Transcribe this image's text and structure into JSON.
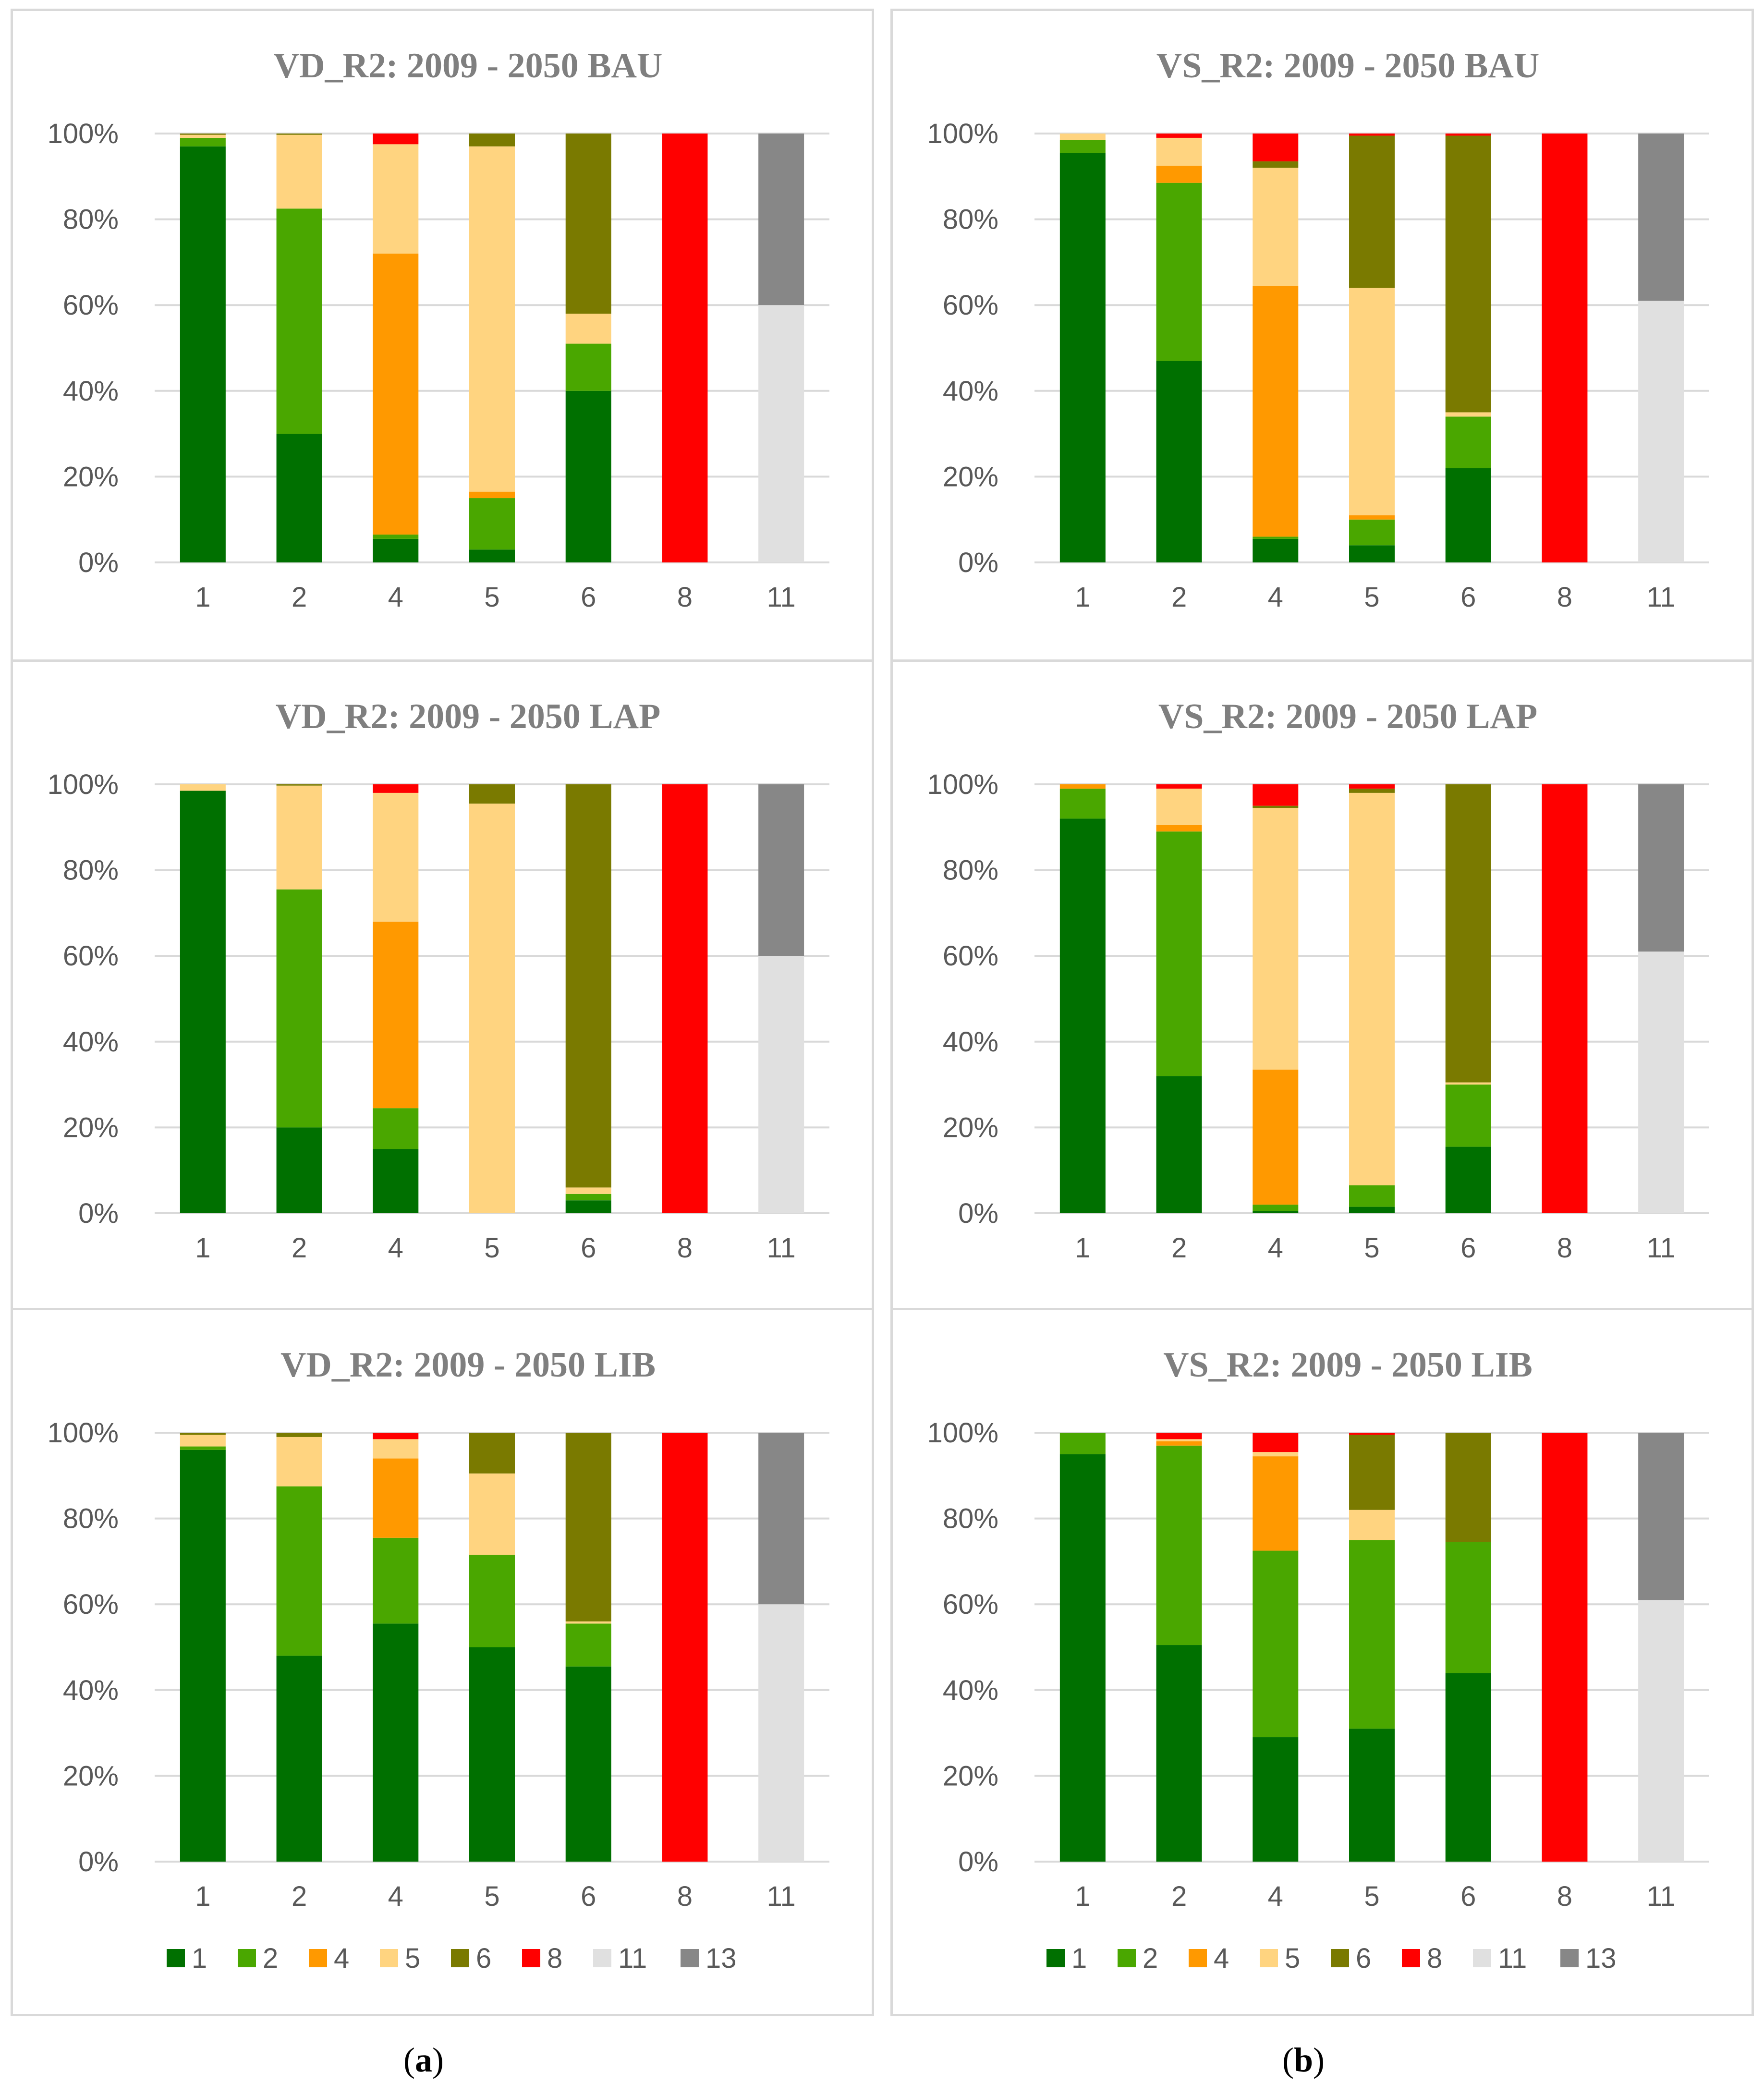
{
  "colors": {
    "1": "#007000",
    "2": "#4aa700",
    "4": "#ff9900",
    "5": "#ffd480",
    "6": "#7a7a00",
    "8": "#ff0000",
    "11": "#e0e0e0",
    "13": "#878787"
  },
  "legend_labels": [
    "1",
    "2",
    "4",
    "5",
    "6",
    "8",
    "11",
    "13"
  ],
  "sublabels": {
    "a": "a",
    "b": "b"
  },
  "chart_data": [
    {
      "type": "bar",
      "stacked": true,
      "title": "VD_R2: 2009 - 2050 BAU",
      "categories": [
        "1",
        "2",
        "4",
        "5",
        "6",
        "8",
        "11"
      ],
      "yticks": [
        "0%",
        "20%",
        "40%",
        "60%",
        "80%",
        "100%"
      ],
      "ylim": [
        0,
        100
      ],
      "series": [
        {
          "name": "1",
          "values": [
            97,
            30,
            5.5,
            3,
            40,
            0,
            0
          ]
        },
        {
          "name": "2",
          "values": [
            2,
            52.5,
            1,
            12,
            11,
            0,
            0
          ]
        },
        {
          "name": "4",
          "values": [
            0,
            0,
            65.5,
            1.5,
            0,
            0,
            0
          ]
        },
        {
          "name": "5",
          "values": [
            0.7,
            17.2,
            25.5,
            80.5,
            7,
            0,
            0
          ]
        },
        {
          "name": "6",
          "values": [
            0.3,
            0.3,
            0,
            3,
            42,
            0,
            0
          ]
        },
        {
          "name": "8",
          "values": [
            0,
            0,
            2.5,
            0,
            0,
            100,
            0
          ]
        },
        {
          "name": "11",
          "values": [
            0,
            0,
            0,
            0,
            0,
            0,
            60
          ]
        },
        {
          "name": "13",
          "values": [
            0,
            0,
            0,
            0,
            0,
            0,
            40
          ]
        }
      ]
    },
    {
      "type": "bar",
      "stacked": true,
      "title": "VD_R2: 2009 - 2050 LAP",
      "categories": [
        "1",
        "2",
        "4",
        "5",
        "6",
        "8",
        "11"
      ],
      "yticks": [
        "0%",
        "20%",
        "40%",
        "60%",
        "80%",
        "100%"
      ],
      "ylim": [
        0,
        100
      ],
      "series": [
        {
          "name": "1",
          "values": [
            98.5,
            20,
            15,
            0,
            3,
            0,
            0
          ]
        },
        {
          "name": "2",
          "values": [
            0,
            55.5,
            9.5,
            0,
            1.5,
            0,
            0
          ]
        },
        {
          "name": "4",
          "values": [
            0,
            0,
            43.5,
            0,
            0,
            0,
            0
          ]
        },
        {
          "name": "5",
          "values": [
            1.5,
            24.2,
            30,
            95.5,
            1.5,
            0,
            0
          ]
        },
        {
          "name": "6",
          "values": [
            0,
            0.3,
            0,
            4.5,
            94,
            0,
            0
          ]
        },
        {
          "name": "8",
          "values": [
            0,
            0,
            2,
            0,
            0,
            100,
            0
          ]
        },
        {
          "name": "11",
          "values": [
            0,
            0,
            0,
            0,
            0,
            0,
            60
          ]
        },
        {
          "name": "13",
          "values": [
            0,
            0,
            0,
            0,
            0,
            0,
            40
          ]
        }
      ]
    },
    {
      "type": "bar",
      "stacked": true,
      "title": "VD_R2: 2009 - 2050 LIB",
      "categories": [
        "1",
        "2",
        "4",
        "5",
        "6",
        "8",
        "11"
      ],
      "yticks": [
        "0%",
        "20%",
        "40%",
        "60%",
        "80%",
        "100%"
      ],
      "ylim": [
        0,
        100
      ],
      "series": [
        {
          "name": "1",
          "values": [
            96,
            48,
            55.5,
            50,
            45.5,
            0,
            0
          ]
        },
        {
          "name": "2",
          "values": [
            0.8,
            39.5,
            20,
            21.5,
            10,
            0,
            0
          ]
        },
        {
          "name": "4",
          "values": [
            0,
            0,
            18.5,
            0,
            0,
            0,
            0
          ]
        },
        {
          "name": "5",
          "values": [
            2.7,
            11.5,
            4.5,
            19,
            0.5,
            0,
            0
          ]
        },
        {
          "name": "6",
          "values": [
            0.5,
            1,
            0,
            9.5,
            44,
            0,
            0
          ]
        },
        {
          "name": "8",
          "values": [
            0,
            0,
            1.5,
            0,
            0,
            100,
            0
          ]
        },
        {
          "name": "11",
          "values": [
            0,
            0,
            0,
            0,
            0,
            0,
            60
          ]
        },
        {
          "name": "13",
          "values": [
            0,
            0,
            0,
            0,
            0,
            0,
            40
          ]
        }
      ]
    },
    {
      "type": "bar",
      "stacked": true,
      "title": "VS_R2: 2009 - 2050 BAU",
      "categories": [
        "1",
        "2",
        "4",
        "5",
        "6",
        "8",
        "11"
      ],
      "yticks": [
        "0%",
        "20%",
        "40%",
        "60%",
        "80%",
        "100%"
      ],
      "ylim": [
        0,
        100
      ],
      "series": [
        {
          "name": "1",
          "values": [
            95.5,
            47,
            5.5,
            4,
            22,
            0,
            0
          ]
        },
        {
          "name": "2",
          "values": [
            3,
            41.5,
            0.5,
            6,
            12,
            0,
            0
          ]
        },
        {
          "name": "4",
          "values": [
            0,
            4,
            58.5,
            1,
            0,
            0,
            0
          ]
        },
        {
          "name": "5",
          "values": [
            1.5,
            6.5,
            27.5,
            53,
            1,
            0,
            0
          ]
        },
        {
          "name": "6",
          "values": [
            0,
            0,
            1.5,
            35.5,
            64.5,
            0,
            0
          ]
        },
        {
          "name": "8",
          "values": [
            0,
            1,
            6.5,
            0.5,
            0.5,
            100,
            0
          ]
        },
        {
          "name": "11",
          "values": [
            0,
            0,
            0,
            0,
            0,
            0,
            61
          ]
        },
        {
          "name": "13",
          "values": [
            0,
            0,
            0,
            0,
            0,
            0,
            39
          ]
        }
      ]
    },
    {
      "type": "bar",
      "stacked": true,
      "title": "VS_R2: 2009 - 2050 LAP",
      "categories": [
        "1",
        "2",
        "4",
        "5",
        "6",
        "8",
        "11"
      ],
      "yticks": [
        "0%",
        "20%",
        "40%",
        "60%",
        "80%",
        "100%"
      ],
      "ylim": [
        0,
        100
      ],
      "series": [
        {
          "name": "1",
          "values": [
            92,
            32,
            0.5,
            1.5,
            15.5,
            0,
            0
          ]
        },
        {
          "name": "2",
          "values": [
            7,
            57,
            1.5,
            5,
            14.5,
            0,
            0
          ]
        },
        {
          "name": "4",
          "values": [
            1,
            1.5,
            31.5,
            0,
            0,
            0,
            0
          ]
        },
        {
          "name": "5",
          "values": [
            0,
            8.5,
            61,
            91.5,
            0.5,
            0,
            0
          ]
        },
        {
          "name": "6",
          "values": [
            0,
            0,
            0.5,
            1,
            69.5,
            0,
            0
          ]
        },
        {
          "name": "8",
          "values": [
            0,
            1,
            5,
            1,
            0,
            100,
            0
          ]
        },
        {
          "name": "11",
          "values": [
            0,
            0,
            0,
            0,
            0,
            0,
            61
          ]
        },
        {
          "name": "13",
          "values": [
            0,
            0,
            0,
            0,
            0,
            0,
            39
          ]
        }
      ]
    },
    {
      "type": "bar",
      "stacked": true,
      "title": "VS_R2: 2009 - 2050 LIB",
      "categories": [
        "1",
        "2",
        "4",
        "5",
        "6",
        "8",
        "11"
      ],
      "yticks": [
        "0%",
        "20%",
        "40%",
        "60%",
        "80%",
        "100%"
      ],
      "ylim": [
        0,
        100
      ],
      "series": [
        {
          "name": "1",
          "values": [
            95,
            50.5,
            29,
            31,
            44,
            0,
            0
          ]
        },
        {
          "name": "2",
          "values": [
            5,
            46.5,
            43.5,
            44,
            30.5,
            0,
            0
          ]
        },
        {
          "name": "4",
          "values": [
            0,
            1,
            22,
            0,
            0,
            0,
            0
          ]
        },
        {
          "name": "5",
          "values": [
            0,
            0.5,
            1,
            7,
            0,
            0,
            0
          ]
        },
        {
          "name": "6",
          "values": [
            0,
            0,
            0,
            17.5,
            25.5,
            0,
            0
          ]
        },
        {
          "name": "8",
          "values": [
            0,
            1.5,
            4.5,
            0.5,
            0,
            100,
            0
          ]
        },
        {
          "name": "11",
          "values": [
            0,
            0,
            0,
            0,
            0,
            0,
            61
          ]
        },
        {
          "name": "13",
          "values": [
            0,
            0,
            0,
            0,
            0,
            0,
            39
          ]
        }
      ]
    }
  ]
}
